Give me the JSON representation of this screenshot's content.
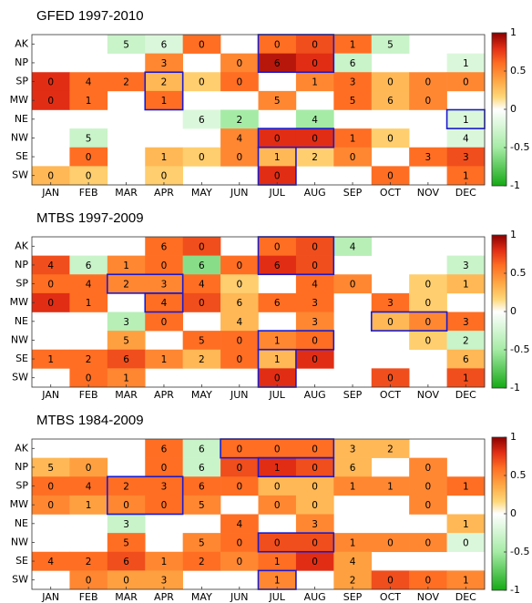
{
  "chart_data": [
    {
      "type": "heatmap",
      "title": "GFED 1997-2010",
      "rows": [
        "AK",
        "NP",
        "SP",
        "MW",
        "NE",
        "NW",
        "SE",
        "SW"
      ],
      "columns": [
        "JAN",
        "FEB",
        "MAR",
        "APR",
        "MAY",
        "JUN",
        "JUL",
        "AUG",
        "SEP",
        "OCT",
        "NOV",
        "DEC"
      ],
      "values": [
        [
          null,
          null,
          -0.3,
          -0.2,
          0.6,
          null,
          0.6,
          0.7,
          0.6,
          -0.3,
          null,
          null
        ],
        [
          null,
          null,
          null,
          0.5,
          null,
          0.5,
          0.9,
          0.8,
          -0.3,
          null,
          null,
          -0.2
        ],
        [
          0.8,
          0.6,
          0.6,
          0.3,
          0.2,
          0.6,
          null,
          0.5,
          0.6,
          0.3,
          0.5,
          0.5
        ],
        [
          0.8,
          0.6,
          null,
          0.6,
          null,
          null,
          0.5,
          null,
          0.6,
          0.3,
          0.5,
          null
        ],
        [
          null,
          null,
          null,
          null,
          -0.2,
          -0.5,
          null,
          -0.5,
          null,
          null,
          null,
          -0.2
        ],
        [
          null,
          -0.3,
          null,
          null,
          null,
          0.5,
          0.8,
          0.8,
          0.6,
          0.2,
          null,
          -0.2
        ],
        [
          null,
          0.6,
          null,
          0.3,
          0.2,
          0.5,
          0.3,
          0.2,
          0.5,
          null,
          0.6,
          0.7
        ],
        [
          0.3,
          0.2,
          null,
          0.2,
          null,
          null,
          0.8,
          null,
          null,
          0.6,
          null,
          0.6
        ]
      ],
      "labels": [
        [
          null,
          null,
          5,
          6,
          0,
          null,
          0,
          0,
          1,
          5,
          null,
          null
        ],
        [
          null,
          null,
          null,
          3,
          null,
          0,
          6,
          0,
          6,
          null,
          null,
          1
        ],
        [
          0,
          4,
          2,
          2,
          0,
          0,
          null,
          1,
          3,
          0,
          0,
          0
        ],
        [
          0,
          1,
          null,
          1,
          null,
          null,
          5,
          null,
          5,
          6,
          0,
          null
        ],
        [
          null,
          null,
          null,
          null,
          6,
          2,
          null,
          4,
          null,
          null,
          null,
          1
        ],
        [
          null,
          5,
          null,
          null,
          null,
          4,
          0,
          0,
          1,
          0,
          null,
          4
        ],
        [
          null,
          0,
          null,
          1,
          0,
          0,
          1,
          2,
          0,
          null,
          3,
          3
        ],
        [
          0,
          0,
          null,
          0,
          null,
          null,
          0,
          null,
          null,
          0,
          null,
          1
        ]
      ],
      "boxes": [
        [
          0,
          1,
          6,
          7
        ],
        [
          2,
          3,
          3,
          3
        ],
        [
          4,
          4,
          11,
          11
        ],
        [
          5,
          5,
          6,
          7
        ],
        [
          6,
          7,
          6,
          6
        ]
      ],
      "zlim": [
        -1,
        1
      ],
      "zticks": [
        1,
        0.5,
        0,
        -0.5,
        -1
      ]
    },
    {
      "type": "heatmap",
      "title": "MTBS 1997-2009",
      "rows": [
        "AK",
        "NP",
        "SP",
        "MW",
        "NE",
        "NW",
        "SE",
        "SW"
      ],
      "columns": [
        "JAN",
        "FEB",
        "MAR",
        "APR",
        "MAY",
        "JUN",
        "JUL",
        "AUG",
        "SEP",
        "OCT",
        "NOV",
        "DEC"
      ],
      "values": [
        [
          null,
          null,
          null,
          0.6,
          0.7,
          null,
          0.6,
          0.7,
          -0.4,
          null,
          null,
          null
        ],
        [
          0.7,
          -0.3,
          0.5,
          0.6,
          -0.6,
          0.6,
          0.8,
          0.7,
          null,
          null,
          null,
          -0.3
        ],
        [
          0.6,
          0.6,
          0.5,
          0.5,
          0.6,
          0.2,
          null,
          0.6,
          0.5,
          null,
          0.2,
          0.3
        ],
        [
          0.8,
          0.6,
          null,
          0.6,
          0.7,
          0.3,
          0.6,
          0.6,
          null,
          0.6,
          0.2,
          null
        ],
        [
          null,
          null,
          -0.4,
          0.6,
          null,
          0.3,
          null,
          0.5,
          null,
          0.3,
          0.5,
          0.6
        ],
        [
          null,
          null,
          0.4,
          null,
          0.6,
          0.6,
          0.5,
          0.6,
          null,
          null,
          0.2,
          -0.3
        ],
        [
          0.6,
          0.6,
          0.7,
          0.5,
          0.3,
          0.6,
          0.3,
          0.8,
          null,
          null,
          null,
          0.3
        ],
        [
          null,
          0.6,
          0.5,
          null,
          null,
          null,
          0.8,
          null,
          null,
          0.7,
          null,
          0.7
        ]
      ],
      "labels": [
        [
          null,
          null,
          null,
          6,
          0,
          null,
          0,
          0,
          4,
          null,
          null,
          null
        ],
        [
          4,
          6,
          1,
          0,
          6,
          0,
          6,
          0,
          null,
          null,
          null,
          3
        ],
        [
          0,
          4,
          2,
          3,
          4,
          0,
          null,
          4,
          0,
          null,
          0,
          1
        ],
        [
          0,
          1,
          null,
          4,
          0,
          6,
          6,
          3,
          null,
          3,
          0,
          null
        ],
        [
          null,
          null,
          3,
          0,
          null,
          4,
          null,
          3,
          null,
          0,
          0,
          3
        ],
        [
          null,
          null,
          5,
          null,
          5,
          0,
          1,
          0,
          null,
          null,
          0,
          2
        ],
        [
          1,
          2,
          6,
          1,
          2,
          0,
          1,
          0,
          null,
          null,
          null,
          6
        ],
        [
          null,
          0,
          1,
          null,
          null,
          null,
          0,
          null,
          null,
          0,
          null,
          1
        ]
      ],
      "boxes": [
        [
          0,
          1,
          6,
          7
        ],
        [
          2,
          2,
          2,
          3
        ],
        [
          3,
          3,
          3,
          3
        ],
        [
          4,
          4,
          9,
          10
        ],
        [
          5,
          5,
          6,
          7
        ],
        [
          6,
          7,
          6,
          6
        ]
      ],
      "zlim": [
        -1,
        1
      ],
      "zticks": [
        1,
        0.5,
        0,
        -0.5,
        -1
      ]
    },
    {
      "type": "heatmap",
      "title": "MTBS 1984-2009",
      "rows": [
        "AK",
        "NP",
        "SP",
        "MW",
        "NE",
        "NW",
        "SE",
        "SW"
      ],
      "columns": [
        "JAN",
        "FEB",
        "MAR",
        "APR",
        "MAY",
        "JUN",
        "JUL",
        "AUG",
        "SEP",
        "OCT",
        "NOV",
        "DEC"
      ],
      "values": [
        [
          null,
          null,
          null,
          0.6,
          -0.3,
          0.6,
          0.6,
          0.6,
          0.3,
          0.3,
          null,
          null
        ],
        [
          0.3,
          0.4,
          null,
          0.6,
          -0.3,
          0.7,
          0.8,
          0.7,
          0.3,
          null,
          0.5,
          null
        ],
        [
          0.6,
          0.6,
          0.6,
          0.6,
          0.6,
          0.6,
          0.3,
          0.3,
          0.5,
          0.5,
          0.5,
          0.6
        ],
        [
          0.5,
          0.4,
          0.5,
          0.6,
          0.5,
          null,
          0.5,
          0.3,
          null,
          null,
          0.5,
          null
        ],
        [
          null,
          null,
          -0.3,
          null,
          null,
          0.6,
          null,
          0.5,
          null,
          null,
          null,
          0.3
        ],
        [
          null,
          null,
          0.6,
          null,
          0.5,
          0.6,
          0.7,
          0.7,
          0.5,
          0.5,
          0.5,
          -0.2
        ],
        [
          0.6,
          0.6,
          0.7,
          0.5,
          0.6,
          0.5,
          0.6,
          0.8,
          0.4,
          null,
          null,
          null
        ],
        [
          null,
          0.5,
          0.4,
          0.4,
          null,
          null,
          0.5,
          null,
          0.4,
          0.7,
          0.6,
          0.5
        ]
      ],
      "labels": [
        [
          null,
          null,
          null,
          6,
          6,
          0,
          0,
          0,
          3,
          2,
          null,
          null
        ],
        [
          5,
          0,
          null,
          0,
          6,
          0,
          1,
          0,
          6,
          null,
          0,
          null
        ],
        [
          0,
          4,
          2,
          3,
          6,
          0,
          0,
          0,
          1,
          1,
          0,
          1
        ],
        [
          0,
          1,
          0,
          0,
          5,
          null,
          0,
          0,
          null,
          null,
          0,
          null
        ],
        [
          null,
          null,
          3,
          null,
          null,
          4,
          null,
          3,
          null,
          null,
          null,
          1
        ],
        [
          null,
          null,
          5,
          null,
          5,
          0,
          0,
          0,
          1,
          0,
          0,
          0
        ],
        [
          4,
          2,
          6,
          1,
          2,
          0,
          1,
          0,
          4,
          null,
          null,
          null
        ],
        [
          null,
          0,
          0,
          3,
          null,
          null,
          1,
          null,
          2,
          0,
          0,
          1
        ]
      ],
      "boxes": [
        [
          0,
          0,
          5,
          7
        ],
        [
          1,
          1,
          6,
          7
        ],
        [
          2,
          3,
          2,
          3
        ],
        [
          5,
          5,
          6,
          7
        ],
        [
          7,
          7,
          6,
          6
        ]
      ],
      "zlim": [
        -1,
        1
      ],
      "zticks": [
        1,
        0.5,
        0,
        -0.5,
        -1
      ]
    }
  ]
}
